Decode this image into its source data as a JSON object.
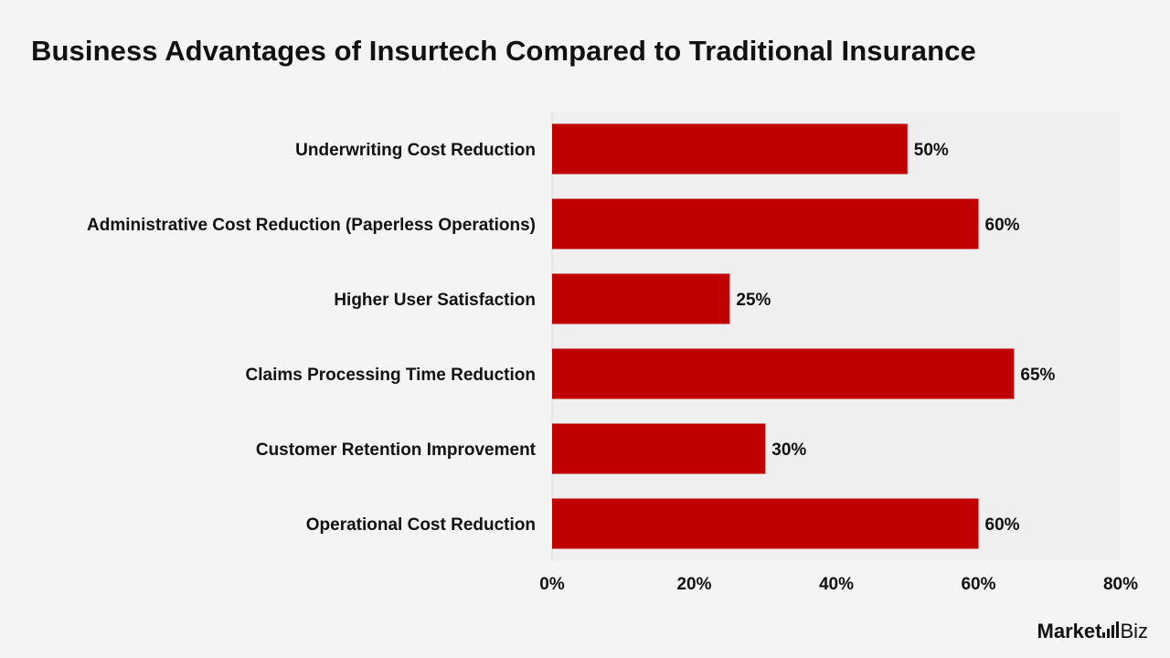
{
  "chart_data": {
    "type": "bar",
    "orientation": "horizontal",
    "title": "Business Advantages of Insurtech Compared to Traditional Insurance",
    "categories": [
      "Underwriting Cost Reduction",
      "Administrative Cost Reduction (Paperless Operations)",
      "Higher User Satisfaction",
      "Claims Processing Time Reduction",
      "Customer Retention Improvement",
      "Operational Cost Reduction"
    ],
    "values": [
      50,
      60,
      25,
      65,
      30,
      60
    ],
    "value_labels": [
      "50%",
      "60%",
      "25%",
      "65%",
      "30%",
      "60%"
    ],
    "xlim": [
      0,
      80
    ],
    "x_ticks": [
      0,
      20,
      40,
      60,
      80
    ],
    "x_tick_labels": [
      "0%",
      "20%",
      "40%",
      "60%",
      "80%"
    ],
    "bar_color": "#c00000",
    "plot_background": "#efefef",
    "grid": false,
    "legend": "none"
  },
  "brand": {
    "logo_bold": "Market",
    "logo_light": "Biz",
    "logo_text": "Market.Biz"
  }
}
